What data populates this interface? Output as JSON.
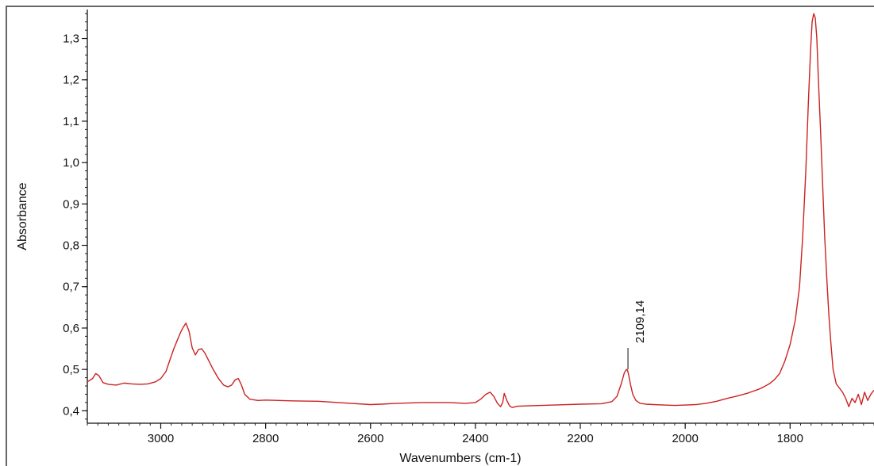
{
  "chart_data": {
    "type": "line",
    "title": "",
    "xlabel": "Wavenumbers (cm-1)",
    "ylabel": "Absorbance",
    "xlim": [
      3140,
      1640
    ],
    "ylim": [
      0.37,
      1.37
    ],
    "x_reversed": true,
    "grid": false,
    "legend": "none",
    "x_ticks": [
      3000,
      2800,
      2600,
      2400,
      2200,
      2000,
      1800
    ],
    "x_tick_labels": [
      "3000",
      "2800",
      "2600",
      "2400",
      "2200",
      "2000",
      "1800"
    ],
    "y_ticks": [
      0.4,
      0.5,
      0.6,
      0.7,
      0.8,
      0.9,
      1.0,
      1.1,
      1.2,
      1.3
    ],
    "y_tick_labels": [
      "0,4",
      "0,5",
      "0,6",
      "0,7",
      "0,8",
      "0,9",
      "1,0",
      "1,1",
      "1,2",
      "1,3"
    ],
    "series": [
      {
        "color": "#cc2222",
        "x": [
          3140,
          3130,
          3124,
          3118,
          3110,
          3100,
          3085,
          3070,
          3055,
          3040,
          3025,
          3010,
          3000,
          2990,
          2982,
          2975,
          2968,
          2962,
          2958,
          2952,
          2946,
          2940,
          2934,
          2928,
          2922,
          2916,
          2908,
          2900,
          2890,
          2880,
          2872,
          2865,
          2858,
          2852,
          2846,
          2840,
          2830,
          2815,
          2800,
          2750,
          2700,
          2650,
          2600,
          2580,
          2550,
          2500,
          2450,
          2420,
          2400,
          2390,
          2380,
          2372,
          2365,
          2358,
          2352,
          2348,
          2345,
          2340,
          2335,
          2330,
          2320,
          2300,
          2250,
          2200,
          2160,
          2140,
          2130,
          2122,
          2116,
          2112,
          2110,
          2108,
          2104,
          2100,
          2094,
          2086,
          2075,
          2060,
          2040,
          2020,
          2000,
          1980,
          1960,
          1940,
          1920,
          1900,
          1880,
          1860,
          1850,
          1840,
          1830,
          1820,
          1810,
          1800,
          1790,
          1782,
          1776,
          1770,
          1765,
          1761,
          1758,
          1755,
          1752,
          1749,
          1746,
          1742,
          1738,
          1734,
          1730,
          1726,
          1722,
          1718,
          1712,
          1706,
          1700,
          1694,
          1688,
          1682,
          1676,
          1670,
          1664,
          1658,
          1652,
          1646,
          1640
        ],
        "y": [
          0.47,
          0.478,
          0.49,
          0.485,
          0.468,
          0.464,
          0.462,
          0.467,
          0.465,
          0.464,
          0.465,
          0.47,
          0.478,
          0.495,
          0.525,
          0.55,
          0.572,
          0.59,
          0.6,
          0.612,
          0.592,
          0.552,
          0.535,
          0.548,
          0.55,
          0.54,
          0.52,
          0.5,
          0.478,
          0.462,
          0.458,
          0.462,
          0.475,
          0.478,
          0.462,
          0.44,
          0.428,
          0.425,
          0.426,
          0.424,
          0.423,
          0.419,
          0.415,
          0.416,
          0.418,
          0.42,
          0.42,
          0.418,
          0.42,
          0.428,
          0.44,
          0.445,
          0.435,
          0.418,
          0.41,
          0.42,
          0.442,
          0.425,
          0.412,
          0.408,
          0.411,
          0.412,
          0.414,
          0.416,
          0.417,
          0.422,
          0.435,
          0.465,
          0.492,
          0.5,
          0.498,
          0.488,
          0.462,
          0.44,
          0.425,
          0.418,
          0.416,
          0.415,
          0.414,
          0.413,
          0.414,
          0.415,
          0.418,
          0.423,
          0.43,
          0.436,
          0.443,
          0.452,
          0.458,
          0.465,
          0.475,
          0.49,
          0.52,
          0.56,
          0.62,
          0.7,
          0.82,
          0.98,
          1.15,
          1.27,
          1.34,
          1.36,
          1.35,
          1.3,
          1.2,
          1.08,
          0.95,
          0.82,
          0.72,
          0.63,
          0.56,
          0.5,
          0.465,
          0.455,
          0.445,
          0.43,
          0.41,
          0.43,
          0.42,
          0.44,
          0.415,
          0.445,
          0.425,
          0.44,
          0.45
        ]
      }
    ],
    "annotations": [
      {
        "x": 2109.14,
        "y": 0.552,
        "text": "2109,14"
      }
    ]
  }
}
